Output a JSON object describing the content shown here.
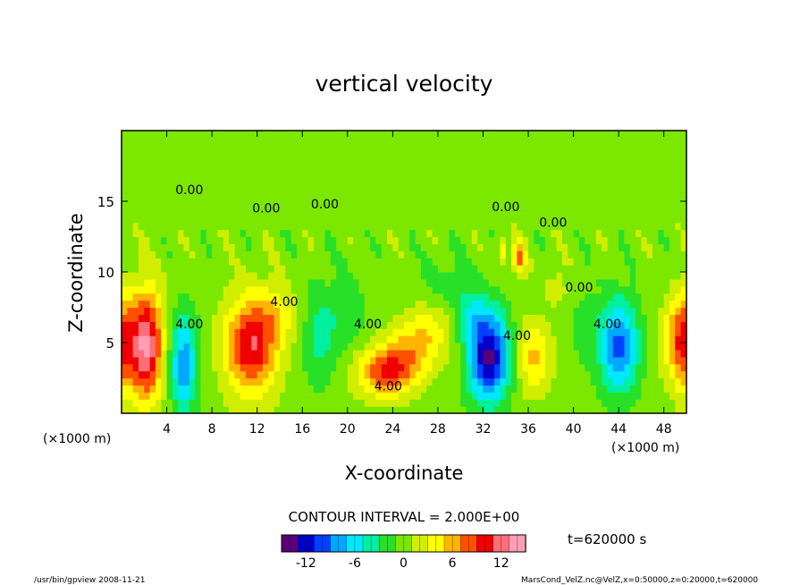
{
  "chart_data": {
    "type": "heatmap",
    "title": "vertical velocity",
    "xlabel": "X-coordinate",
    "ylabel": "Z-coordinate",
    "x_unit": "(×1000 m)",
    "y_unit": "(×1000 m)",
    "xlim": [
      0,
      50
    ],
    "ylim": [
      0,
      20
    ],
    "x_ticks": [
      4,
      8,
      12,
      16,
      20,
      24,
      28,
      32,
      36,
      40,
      44,
      48
    ],
    "y_ticks": [
      5,
      10,
      15
    ],
    "contour_interval_label": "CONTOUR INTERVAL = 2.000E+00",
    "contour_labels": [
      {
        "text": "4.00",
        "x": 6.0,
        "y": 6.0
      },
      {
        "text": "4.00",
        "x": 14.4,
        "y": 7.6
      },
      {
        "text": "4.00",
        "x": 21.8,
        "y": 6.0
      },
      {
        "text": "4.00",
        "x": 23.6,
        "y": 1.6
      },
      {
        "text": "4.00",
        "x": 35.0,
        "y": 5.2
      },
      {
        "text": "4.00",
        "x": 43.0,
        "y": 6.0
      },
      {
        "text": "0.00",
        "x": 6.0,
        "y": 15.5
      },
      {
        "text": "0.00",
        "x": 12.8,
        "y": 14.2
      },
      {
        "text": "0.00",
        "x": 18.0,
        "y": 14.5
      },
      {
        "text": "0.00",
        "x": 34.0,
        "y": 14.3
      },
      {
        "text": "0.00",
        "x": 38.2,
        "y": 13.2
      },
      {
        "text": "0.00",
        "x": 40.5,
        "y": 8.6
      }
    ],
    "features": [
      {
        "x": 2.2,
        "z": 4.8,
        "w": 13.5,
        "sx": 1.4,
        "sz": 3.8
      },
      {
        "x": 0.0,
        "z": 5.0,
        "w": 9.0,
        "sx": 1.2,
        "sz": 3.5
      },
      {
        "x": 5.5,
        "z": 3.5,
        "w": -8.5,
        "sx": 1.2,
        "sz": 3.4
      },
      {
        "x": 11.5,
        "z": 4.8,
        "w": 11.0,
        "sx": 2.3,
        "sz": 3.4
      },
      {
        "x": 14.0,
        "z": 7.0,
        "w": 3.0,
        "sx": 2.0,
        "sz": 2.0
      },
      {
        "x": 17.5,
        "z": 5.5,
        "w": -3.5,
        "sx": 1.6,
        "sz": 3.5
      },
      {
        "x": 20.0,
        "z": 7.0,
        "w": -2.0,
        "sx": 2.0,
        "sz": 3.0
      },
      {
        "x": 23.5,
        "z": 3.0,
        "w": 9.5,
        "sx": 2.6,
        "sz": 1.7
      },
      {
        "x": 26.0,
        "z": 4.8,
        "w": 5.0,
        "sx": 2.5,
        "sz": 1.8
      },
      {
        "x": 27.5,
        "z": 6.6,
        "w": 2.5,
        "sx": 2.0,
        "sz": 1.6
      },
      {
        "x": 29.0,
        "z": 9.0,
        "w": -2.0,
        "sx": 2.2,
        "sz": 2.2
      },
      {
        "x": 32.5,
        "z": 4.0,
        "w": -13.5,
        "sx": 1.8,
        "sz": 3.2
      },
      {
        "x": 31.0,
        "z": 7.0,
        "w": -3.0,
        "sx": 1.5,
        "sz": 2.0
      },
      {
        "x": 36.5,
        "z": 4.0,
        "w": 5.5,
        "sx": 1.5,
        "sz": 2.5
      },
      {
        "x": 35.2,
        "z": 11.0,
        "w": 7.0,
        "sx": 0.6,
        "sz": 1.2
      },
      {
        "x": 33.7,
        "z": 11.5,
        "w": 6.0,
        "sx": 0.4,
        "sz": 0.9
      },
      {
        "x": 38.5,
        "z": 9.0,
        "w": 2.0,
        "sx": 1.0,
        "sz": 1.5
      },
      {
        "x": 44.0,
        "z": 4.8,
        "w": -10.0,
        "sx": 1.7,
        "sz": 3.2
      },
      {
        "x": 41.0,
        "z": 6.0,
        "w": -2.0,
        "sx": 1.2,
        "sz": 2.5
      },
      {
        "x": 50.0,
        "z": 5.2,
        "w": 10.0,
        "sx": 1.3,
        "sz": 3.5
      },
      {
        "x": 48.5,
        "z": 5.0,
        "w": 3.0,
        "sx": 1.2,
        "sz": 2.5
      }
    ],
    "colorbar": {
      "min": -15,
      "max": 15,
      "ticks": [
        -12,
        -6,
        0,
        6,
        12
      ],
      "colors": [
        "#5a0078",
        "#0000c8",
        "#0040ff",
        "#00a8ff",
        "#00e8ff",
        "#00f0a0",
        "#28e028",
        "#7ce800",
        "#d2ee00",
        "#ffff00",
        "#ffb400",
        "#ff5000",
        "#f00000",
        "#ff6e78",
        "#ff9eb4"
      ]
    }
  },
  "time_label": "t=620000 s",
  "footer_left": "/usr/bin/gpview   2008-11-21",
  "footer_right": "MarsCond_VelZ.nc@VelZ,x=0:50000,z=0:20000,t=620000"
}
